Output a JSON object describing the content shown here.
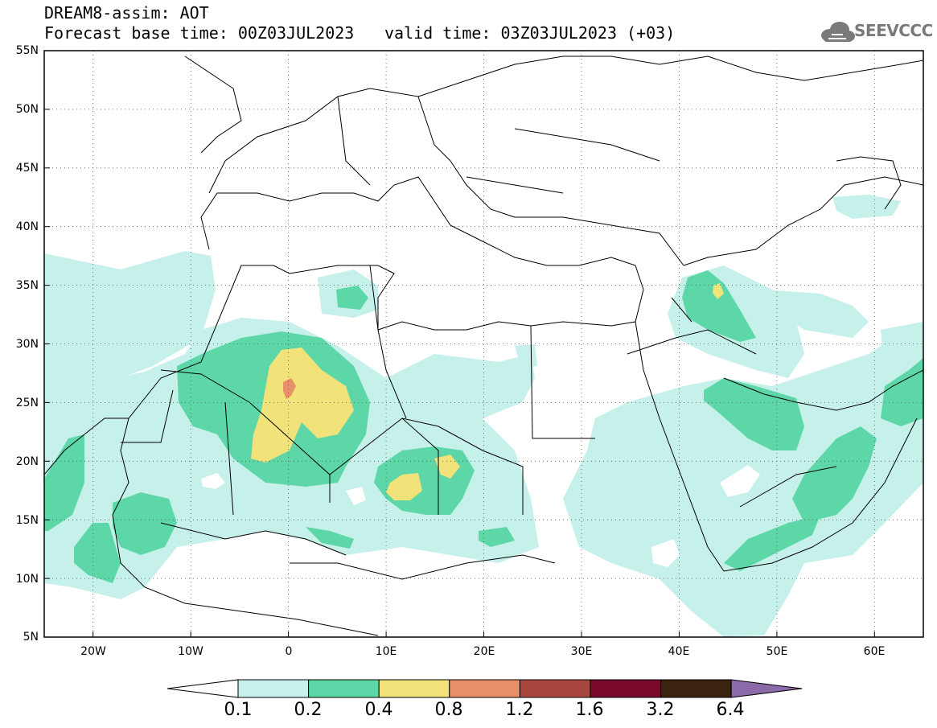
{
  "header": {
    "line1": "DREAM8-assim: AOT",
    "line2": "Forecast base time: 00Z03JUL2023",
    "line3": "valid time: 03Z03JUL2023 (+03)",
    "logo_text": "SEEVCCC",
    "logo_icon": "cloud-icon"
  },
  "map": {
    "lat_labels": [
      "55N",
      "50N",
      "45N",
      "40N",
      "35N",
      "30N",
      "25N",
      "20N",
      "15N",
      "10N",
      "5N"
    ],
    "lon_labels": [
      "20W",
      "10W",
      "0",
      "10E",
      "20E",
      "30E",
      "40E",
      "50E",
      "60E"
    ],
    "lat_range": [
      5,
      55
    ],
    "lon_range": [
      -25,
      65
    ],
    "grid": "dotted"
  },
  "colorbar": {
    "labels": [
      "0.1",
      "0.2",
      "0.4",
      "0.8",
      "1.2",
      "1.6",
      "3.2",
      "6.4"
    ],
    "colors": [
      "#ffffff",
      "#c6f0ea",
      "#5ed7a8",
      "#f2e27a",
      "#e8906a",
      "#a8473d",
      "#7a0a2a",
      "#3b2510",
      "#8a6aa8"
    ]
  }
}
